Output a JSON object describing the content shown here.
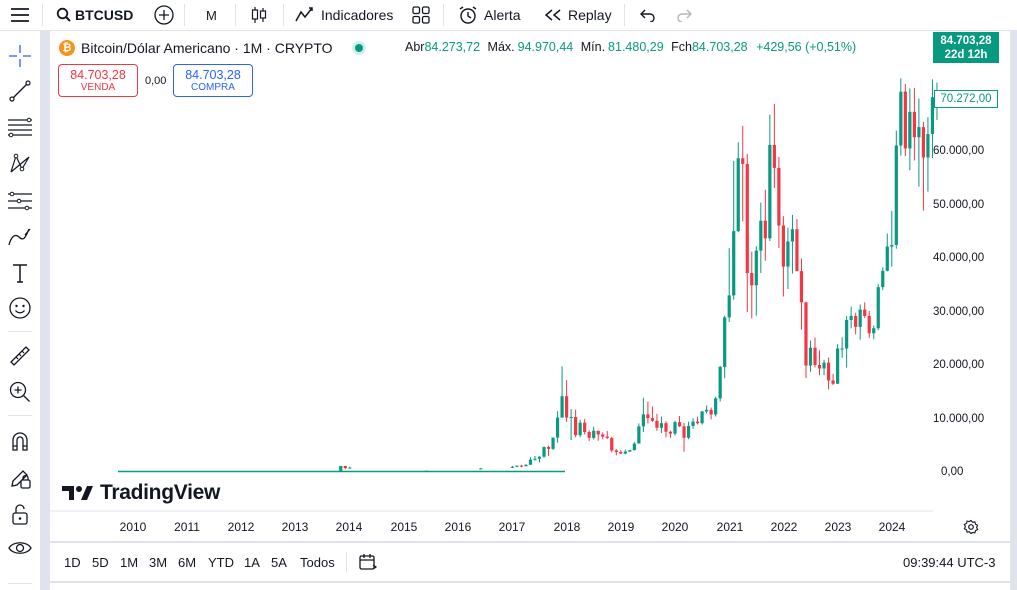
{
  "toolbar": {
    "symbol": "BTCUSD",
    "interval": "M",
    "indicators_label": "Indicadores",
    "alert_label": "Alerta",
    "replay_label": "Replay"
  },
  "legend": {
    "title": "Bitcoin/Dólar Americano · 1M · CRYPTO",
    "open_label": "Abr",
    "open": "84.273,72",
    "high_label": "Máx.",
    "high": "94.970,44",
    "low_label": "Mín.",
    "low": "81.480,29",
    "close_label": "Fch",
    "close": "84.703,28",
    "change": "+429,56 (+0,51%)"
  },
  "trade": {
    "sell_price": "84.703,28",
    "sell_label": "VENDA",
    "spread": "0,00",
    "buy_price": "84.703,28",
    "buy_label": "COMPRA"
  },
  "price_axis": {
    "last_price": "84.703,28",
    "countdown": "22d 12h",
    "marker": "70.272,00",
    "ticks": [
      "60.000,00",
      "50.000,00",
      "40.000,00",
      "30.000,00",
      "20.000,00",
      "10.000,00",
      "0,00"
    ]
  },
  "time_axis": {
    "years": [
      "2010",
      "2011",
      "2012",
      "2013",
      "2014",
      "2015",
      "2016",
      "2017",
      "2018",
      "2019",
      "2020",
      "2021",
      "2022",
      "2023",
      "2024"
    ]
  },
  "bottom": {
    "ranges": [
      "1D",
      "5D",
      "1M",
      "3M",
      "6M",
      "YTD",
      "1A",
      "5A",
      "Todos"
    ],
    "clock": "09:39:44 UTC-3"
  },
  "watermark": "TradingView",
  "colors": {
    "up": "#089981",
    "down": "#f23645",
    "accent": "#2962ff"
  },
  "chart_data": {
    "type": "candlestick",
    "symbol": "BTCUSD",
    "interval": "1M",
    "ylim": [
      -5000,
      88000
    ],
    "x_range": [
      "2009-07",
      "2025-05"
    ],
    "candles": [
      {
        "t": "2013-11",
        "o": 200,
        "h": 1150,
        "l": 200,
        "c": 1130
      },
      {
        "t": "2013-12",
        "o": 1130,
        "h": 1160,
        "l": 500,
        "c": 750
      },
      {
        "t": "2014-01",
        "o": 750,
        "h": 1000,
        "l": 750,
        "c": 820
      },
      {
        "t": "2015-06",
        "o": 230,
        "h": 260,
        "l": 210,
        "c": 260
      },
      {
        "t": "2016-06",
        "o": 530,
        "h": 760,
        "l": 530,
        "c": 670
      },
      {
        "t": "2017-01",
        "o": 960,
        "h": 1150,
        "l": 750,
        "c": 970
      },
      {
        "t": "2017-02",
        "o": 970,
        "h": 1200,
        "l": 900,
        "c": 1190
      },
      {
        "t": "2017-03",
        "o": 1190,
        "h": 1350,
        "l": 900,
        "c": 1080
      },
      {
        "t": "2017-04",
        "o": 1080,
        "h": 1450,
        "l": 1070,
        "c": 1350
      },
      {
        "t": "2017-05",
        "o": 1350,
        "h": 2750,
        "l": 1330,
        "c": 2300
      },
      {
        "t": "2017-06",
        "o": 2300,
        "h": 3000,
        "l": 2100,
        "c": 2480
      },
      {
        "t": "2017-07",
        "o": 2480,
        "h": 2950,
        "l": 1830,
        "c": 2870
      },
      {
        "t": "2017-08",
        "o": 2870,
        "h": 4750,
        "l": 2670,
        "c": 4700
      },
      {
        "t": "2017-09",
        "o": 4700,
        "h": 4950,
        "l": 2970,
        "c": 4340
      },
      {
        "t": "2017-10",
        "o": 4340,
        "h": 6450,
        "l": 4110,
        "c": 6450
      },
      {
        "t": "2017-11",
        "o": 6450,
        "h": 11400,
        "l": 5500,
        "c": 10200
      },
      {
        "t": "2017-12",
        "o": 10200,
        "h": 19800,
        "l": 10200,
        "c": 14200
      },
      {
        "t": "2018-01",
        "o": 14200,
        "h": 17200,
        "l": 9400,
        "c": 10200
      },
      {
        "t": "2018-02",
        "o": 10200,
        "h": 11800,
        "l": 6000,
        "c": 10300
      },
      {
        "t": "2018-03",
        "o": 10300,
        "h": 11700,
        "l": 6500,
        "c": 6900
      },
      {
        "t": "2018-04",
        "o": 6900,
        "h": 9800,
        "l": 6500,
        "c": 9250
      },
      {
        "t": "2018-05",
        "o": 9250,
        "h": 9950,
        "l": 7050,
        "c": 7500
      },
      {
        "t": "2018-06",
        "o": 7500,
        "h": 7800,
        "l": 5800,
        "c": 6400
      },
      {
        "t": "2018-07",
        "o": 6400,
        "h": 8500,
        "l": 6100,
        "c": 7730
      },
      {
        "t": "2018-08",
        "o": 7730,
        "h": 7780,
        "l": 5880,
        "c": 7040
      },
      {
        "t": "2018-09",
        "o": 7040,
        "h": 7420,
        "l": 6100,
        "c": 6630
      },
      {
        "t": "2018-10",
        "o": 6630,
        "h": 7700,
        "l": 6200,
        "c": 6370
      },
      {
        "t": "2018-11",
        "o": 6370,
        "h": 6600,
        "l": 3660,
        "c": 4040
      },
      {
        "t": "2018-12",
        "o": 4040,
        "h": 4300,
        "l": 3120,
        "c": 3740
      },
      {
        "t": "2019-01",
        "o": 3740,
        "h": 4100,
        "l": 3370,
        "c": 3460
      },
      {
        "t": "2019-02",
        "o": 3460,
        "h": 4200,
        "l": 3340,
        "c": 3820
      },
      {
        "t": "2019-03",
        "o": 3820,
        "h": 4100,
        "l": 3760,
        "c": 4100
      },
      {
        "t": "2019-04",
        "o": 4100,
        "h": 5600,
        "l": 4050,
        "c": 5330
      },
      {
        "t": "2019-05",
        "o": 5330,
        "h": 9100,
        "l": 5330,
        "c": 8550
      },
      {
        "t": "2019-06",
        "o": 8550,
        "h": 13900,
        "l": 7500,
        "c": 10800
      },
      {
        "t": "2019-07",
        "o": 10800,
        "h": 13200,
        "l": 9100,
        "c": 10100
      },
      {
        "t": "2019-08",
        "o": 10100,
        "h": 12300,
        "l": 9400,
        "c": 9600
      },
      {
        "t": "2019-09",
        "o": 9600,
        "h": 10900,
        "l": 7700,
        "c": 8300
      },
      {
        "t": "2019-10",
        "o": 8300,
        "h": 10400,
        "l": 7300,
        "c": 9150
      },
      {
        "t": "2019-11",
        "o": 9150,
        "h": 9500,
        "l": 6500,
        "c": 7550
      },
      {
        "t": "2019-12",
        "o": 7550,
        "h": 7750,
        "l": 6400,
        "c": 7200
      },
      {
        "t": "2020-01",
        "o": 7200,
        "h": 9600,
        "l": 6850,
        "c": 9350
      },
      {
        "t": "2020-02",
        "o": 9350,
        "h": 10500,
        "l": 8450,
        "c": 8550
      },
      {
        "t": "2020-03",
        "o": 8550,
        "h": 9200,
        "l": 3800,
        "c": 6420
      },
      {
        "t": "2020-04",
        "o": 6420,
        "h": 9450,
        "l": 6150,
        "c": 8630
      },
      {
        "t": "2020-05",
        "o": 8630,
        "h": 10070,
        "l": 8100,
        "c": 9450
      },
      {
        "t": "2020-06",
        "o": 9450,
        "h": 10380,
        "l": 8900,
        "c": 9140
      },
      {
        "t": "2020-07",
        "o": 9140,
        "h": 11450,
        "l": 8900,
        "c": 11350
      },
      {
        "t": "2020-08",
        "o": 11350,
        "h": 12480,
        "l": 10950,
        "c": 11650
      },
      {
        "t": "2020-09",
        "o": 11650,
        "h": 12070,
        "l": 9850,
        "c": 10780
      },
      {
        "t": "2020-10",
        "o": 10780,
        "h": 14100,
        "l": 10400,
        "c": 13800
      },
      {
        "t": "2020-11",
        "o": 13800,
        "h": 19900,
        "l": 13200,
        "c": 19700
      },
      {
        "t": "2020-12",
        "o": 19700,
        "h": 29300,
        "l": 17600,
        "c": 28990
      },
      {
        "t": "2021-01",
        "o": 28990,
        "h": 41950,
        "l": 28130,
        "c": 33100
      },
      {
        "t": "2021-02",
        "o": 33100,
        "h": 58350,
        "l": 32300,
        "c": 45150
      },
      {
        "t": "2021-03",
        "o": 45150,
        "h": 61800,
        "l": 44950,
        "c": 58800
      },
      {
        "t": "2021-04",
        "o": 58800,
        "h": 64900,
        "l": 47000,
        "c": 57750
      },
      {
        "t": "2021-05",
        "o": 57750,
        "h": 59600,
        "l": 30000,
        "c": 37300
      },
      {
        "t": "2021-06",
        "o": 37300,
        "h": 41300,
        "l": 28800,
        "c": 35000
      },
      {
        "t": "2021-07",
        "o": 35000,
        "h": 42300,
        "l": 29300,
        "c": 41500
      },
      {
        "t": "2021-08",
        "o": 41500,
        "h": 50500,
        "l": 37300,
        "c": 47100
      },
      {
        "t": "2021-09",
        "o": 47100,
        "h": 52900,
        "l": 39600,
        "c": 43800
      },
      {
        "t": "2021-10",
        "o": 43800,
        "h": 67000,
        "l": 43300,
        "c": 61300
      },
      {
        "t": "2021-11",
        "o": 61300,
        "h": 69000,
        "l": 53250,
        "c": 57000
      },
      {
        "t": "2021-12",
        "o": 57000,
        "h": 59050,
        "l": 42000,
        "c": 46200
      },
      {
        "t": "2022-01",
        "o": 46200,
        "h": 47950,
        "l": 32900,
        "c": 38500
      },
      {
        "t": "2022-02",
        "o": 38500,
        "h": 45800,
        "l": 34300,
        "c": 43200
      },
      {
        "t": "2022-03",
        "o": 43200,
        "h": 48200,
        "l": 37200,
        "c": 45500
      },
      {
        "t": "2022-04",
        "o": 45500,
        "h": 47400,
        "l": 37700,
        "c": 37650
      },
      {
        "t": "2022-05",
        "o": 37650,
        "h": 40000,
        "l": 26700,
        "c": 31800
      },
      {
        "t": "2022-06",
        "o": 31800,
        "h": 31900,
        "l": 17600,
        "c": 19950
      },
      {
        "t": "2022-07",
        "o": 19950,
        "h": 24650,
        "l": 18800,
        "c": 23300
      },
      {
        "t": "2022-08",
        "o": 23300,
        "h": 25200,
        "l": 19600,
        "c": 20050
      },
      {
        "t": "2022-09",
        "o": 20050,
        "h": 22800,
        "l": 18150,
        "c": 19400
      },
      {
        "t": "2022-10",
        "o": 19400,
        "h": 21050,
        "l": 18150,
        "c": 20500
      },
      {
        "t": "2022-11",
        "o": 20500,
        "h": 21450,
        "l": 15500,
        "c": 17150
      },
      {
        "t": "2022-12",
        "o": 17150,
        "h": 18400,
        "l": 16300,
        "c": 16550
      },
      {
        "t": "2023-01",
        "o": 16550,
        "h": 23950,
        "l": 16500,
        "c": 23150
      },
      {
        "t": "2023-02",
        "o": 23150,
        "h": 25250,
        "l": 21400,
        "c": 23150
      },
      {
        "t": "2023-03",
        "o": 23150,
        "h": 29200,
        "l": 19550,
        "c": 28500
      },
      {
        "t": "2023-04",
        "o": 28500,
        "h": 31000,
        "l": 26950,
        "c": 29250
      },
      {
        "t": "2023-05",
        "o": 29250,
        "h": 29850,
        "l": 25800,
        "c": 27200
      },
      {
        "t": "2023-06",
        "o": 27200,
        "h": 31400,
        "l": 24800,
        "c": 30450
      },
      {
        "t": "2023-07",
        "o": 30450,
        "h": 31800,
        "l": 28850,
        "c": 29250
      },
      {
        "t": "2023-08",
        "o": 29250,
        "h": 30200,
        "l": 25150,
        "c": 26000
      },
      {
        "t": "2023-09",
        "o": 26000,
        "h": 27450,
        "l": 24900,
        "c": 26950
      },
      {
        "t": "2023-10",
        "o": 26950,
        "h": 35200,
        "l": 26550,
        "c": 34650
      },
      {
        "t": "2023-11",
        "o": 34650,
        "h": 38400,
        "l": 34100,
        "c": 37700
      },
      {
        "t": "2023-12",
        "o": 37700,
        "h": 44700,
        "l": 37600,
        "c": 42250
      },
      {
        "t": "2024-01",
        "o": 42250,
        "h": 48950,
        "l": 38500,
        "c": 42550
      },
      {
        "t": "2024-02",
        "o": 42550,
        "h": 64000,
        "l": 41850,
        "c": 61200
      },
      {
        "t": "2024-03",
        "o": 61200,
        "h": 73800,
        "l": 59300,
        "c": 71300
      },
      {
        "t": "2024-04",
        "o": 71300,
        "h": 72750,
        "l": 59200,
        "c": 60650
      },
      {
        "t": "2024-05",
        "o": 60650,
        "h": 71900,
        "l": 56550,
        "c": 67500
      },
      {
        "t": "2024-06",
        "o": 67500,
        "h": 71950,
        "l": 58400,
        "c": 62750
      },
      {
        "t": "2024-07",
        "o": 62750,
        "h": 70000,
        "l": 53500,
        "c": 64650
      },
      {
        "t": "2024-08",
        "o": 64650,
        "h": 65650,
        "l": 49000,
        "c": 58950
      },
      {
        "t": "2024-09",
        "o": 58950,
        "h": 66500,
        "l": 52550,
        "c": 63350
      },
      {
        "t": "2024-10",
        "o": 63350,
        "h": 73600,
        "l": 58850,
        "c": 70250
      },
      {
        "t": "2024-11",
        "o": 70250,
        "h": 73000,
        "l": 66000,
        "c": 70272
      }
    ]
  }
}
